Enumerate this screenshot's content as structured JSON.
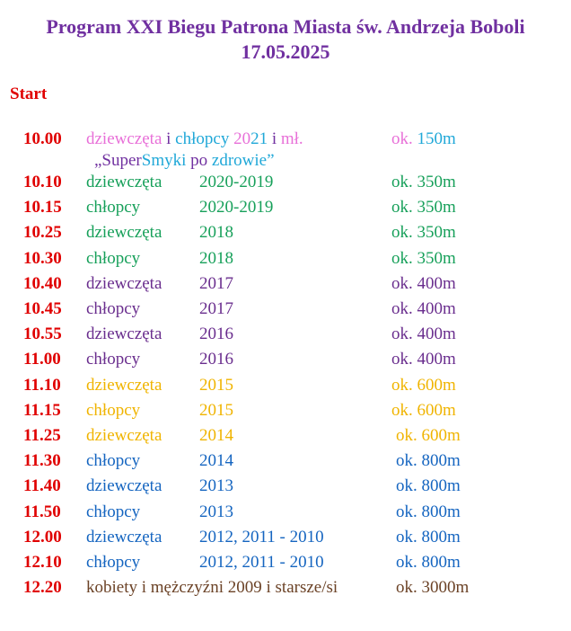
{
  "header": {
    "title": "Program XXI Biegu Patrona Miasta św. Andrzeja Boboli",
    "date": "17.05.2025"
  },
  "start_label": "Start",
  "first": {
    "time": "10.00",
    "line1": [
      {
        "text": "dziewczęta ",
        "color": "#e870d8"
      },
      {
        "text": "i ",
        "color": "#7030a0"
      },
      {
        "text": "chłopcy ",
        "color": "#20a8d8"
      },
      {
        "text": "20",
        "color": "#e870d8"
      },
      {
        "text": "21 ",
        "color": "#20a8d8"
      },
      {
        "text": "i ",
        "color": "#7030a0"
      },
      {
        "text": "mł.",
        "color": "#e870d8"
      }
    ],
    "line2": [
      {
        "text": "„Super",
        "color": "#7030a0"
      },
      {
        "text": "Smyki ",
        "color": "#20a8d8"
      },
      {
        "text": "po ",
        "color": "#7030a0"
      },
      {
        "text": "zdrowie”",
        "color": "#20a8d8"
      }
    ],
    "distance": [
      {
        "text": "ok. ",
        "color": "#e870d8"
      },
      {
        "text": "150m",
        "color": "#20a8d8"
      }
    ]
  },
  "rows": [
    {
      "time": "10.10",
      "group": "dziewczęta",
      "years": "2020-2019",
      "distance": "ok. 350m",
      "color": "#17a05a"
    },
    {
      "time": "10.15",
      "group": "chłopcy",
      "years": "2020-2019",
      "distance": "ok. 350m",
      "color": "#17a05a"
    },
    {
      "time": "10.25",
      "group": "dziewczęta",
      "years": "2018",
      "distance": "ok. 350m",
      "color": "#17a05a"
    },
    {
      "time": "10.30",
      "group": "chłopcy",
      "years": "2018",
      "distance": "ok. 350m",
      "color": "#17a05a"
    },
    {
      "time": "10.40",
      "group": "dziewczęta",
      "years": "2017",
      "distance": "ok. 400m",
      "color": "#6a2e8e"
    },
    {
      "time": "10.45",
      "group": "chłopcy",
      "years": "2017",
      "distance": "ok. 400m",
      "color": "#6a2e8e"
    },
    {
      "time": "10.55",
      "group": "dziewczęta",
      "years": "2016",
      "distance": "ok. 400m",
      "color": "#6a2e8e"
    },
    {
      "time": "11.00",
      "group": "chłopcy",
      "years": "2016",
      "distance": "ok. 400m",
      "color": "#6a2e8e"
    },
    {
      "time": "11.10",
      "group": "dziewczęta",
      "years": "2015",
      "distance": "ok. 600m",
      "color": "#f0b400"
    },
    {
      "time": "11.15",
      "group": "chłopcy",
      "years": "2015",
      "distance": "ok. 600m",
      "color": "#f0b400"
    },
    {
      "time": "11.25",
      "group": "dziewczęta",
      "years": "2014",
      "distance": "ok. 600m",
      "color": "#f0b400"
    },
    {
      "time": "11.30",
      "group": "chłopcy",
      "years": "2014",
      "distance": "ok. 800m",
      "color": "#1565c0"
    },
    {
      "time": "11.40",
      "group": "dziewczęta",
      "years": "2013",
      "distance": "ok. 800m",
      "color": "#1565c0"
    },
    {
      "time": "11.50",
      "group": "chłopcy",
      "years": "2013",
      "distance": "ok. 800m",
      "color": "#1565c0"
    },
    {
      "time": "12.00",
      "group": "dziewczęta",
      "years": "2012, 2011 - 2010",
      "distance": "ok. 800m",
      "color": "#1565c0"
    },
    {
      "time": "12.10",
      "group": "chłopcy",
      "years": "2012, 2011 - 2010",
      "distance": "ok. 800m",
      "color": "#1565c0"
    },
    {
      "time": "12.20",
      "group": "kobiety i mężczyźni 2009 i starsze/si",
      "distance": "ok. 3000m",
      "color": "#6b4226"
    }
  ]
}
